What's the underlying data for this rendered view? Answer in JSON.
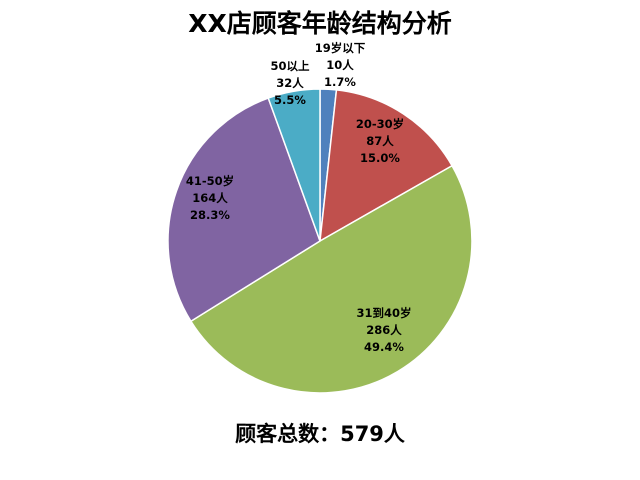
{
  "chart_data": {
    "type": "pie",
    "title": "XX店顾客年龄结构分析",
    "slices": [
      {
        "label": "19岁以下",
        "count": "10人",
        "percent": "1.7%",
        "value": 10,
        "color": "#4F81BD"
      },
      {
        "label": "20-30岁",
        "count": "87人",
        "percent": "15.0%",
        "value": 87,
        "color": "#C0504D"
      },
      {
        "label": "31到40岁",
        "count": "286人",
        "percent": "49.4%",
        "value": 286,
        "color": "#9BBB59"
      },
      {
        "label": "41-50岁",
        "count": "164人",
        "percent": "28.3%",
        "value": 164,
        "color": "#8064A2"
      },
      {
        "label": "50以上",
        "count": "32人",
        "percent": "5.5%",
        "value": 32,
        "color": "#4BACC6"
      }
    ],
    "legend": "none"
  },
  "footer": {
    "total_text": "顾客总数：579人"
  }
}
